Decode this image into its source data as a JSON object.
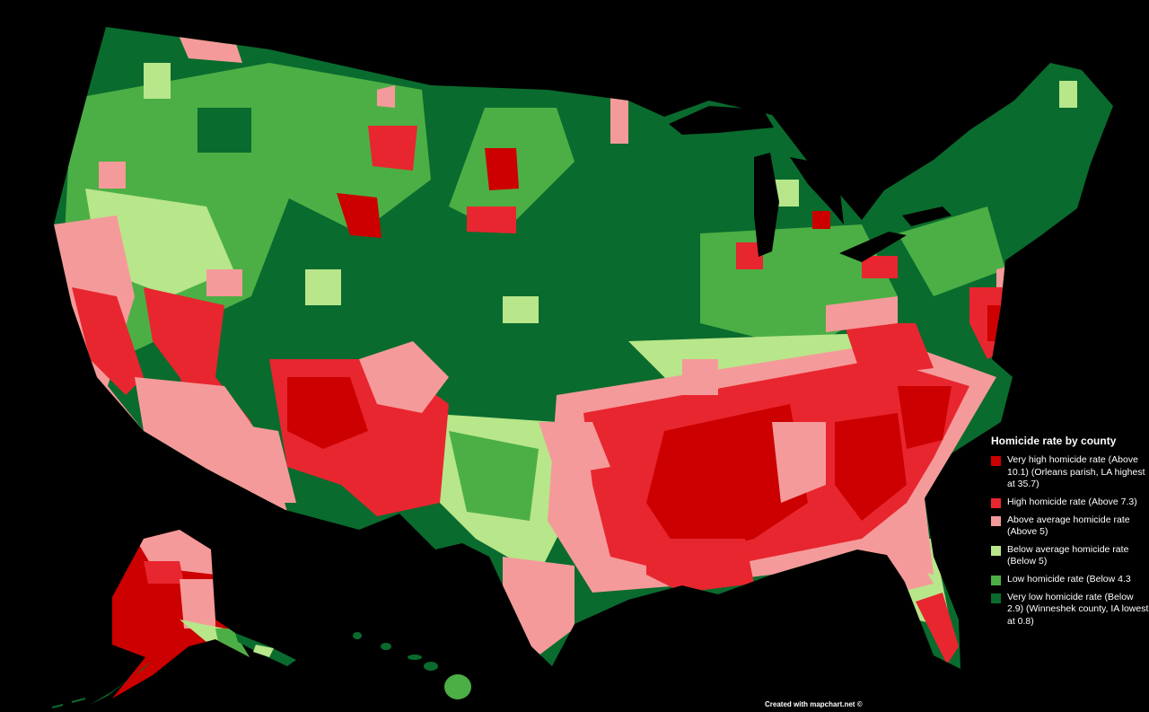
{
  "legend": {
    "title": "Homicide rate by county",
    "items": [
      {
        "label": "Very high homicide rate (Above 10.1) (Orleans parish, LA highest at 35.7)",
        "color": "#cc0000"
      },
      {
        "label": "High homicide rate (Above 7.3)",
        "color": "#e8262f"
      },
      {
        "label": "Above average homicide rate (Above 5)",
        "color": "#f59a9a"
      },
      {
        "label": "Below average homicide rate (Below 5)",
        "color": "#b8e68a"
      },
      {
        "label": "Low homicide rate (Below 4.3",
        "color": "#4caf45"
      },
      {
        "label": "Very low homicide rate (Below 2.9) (Winneshek county, IA lowest at 0.8)",
        "color": "#0a6b2e"
      }
    ]
  },
  "credit": "Created with mapchart.net ©",
  "colors": {
    "background": "#000000",
    "very_high": "#cc0000",
    "high": "#e8262f",
    "above_average": "#f59a9a",
    "below_average": "#b8e68a",
    "low": "#4caf45",
    "very_low": "#0a6b2e"
  }
}
